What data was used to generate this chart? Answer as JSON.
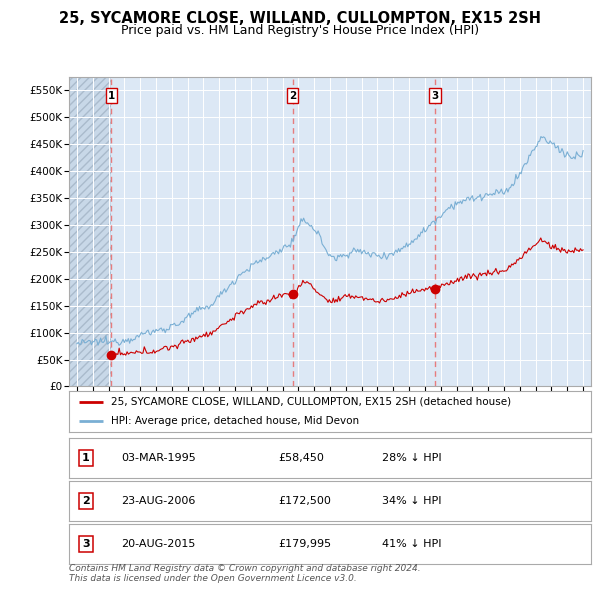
{
  "title": "25, SYCAMORE CLOSE, WILLAND, CULLOMPTON, EX15 2SH",
  "subtitle": "Price paid vs. HM Land Registry's House Price Index (HPI)",
  "ylim": [
    0,
    575000
  ],
  "yticks": [
    0,
    50000,
    100000,
    150000,
    200000,
    250000,
    300000,
    350000,
    400000,
    450000,
    500000,
    550000
  ],
  "ytick_labels": [
    "£0",
    "£50K",
    "£100K",
    "£150K",
    "£200K",
    "£250K",
    "£300K",
    "£350K",
    "£400K",
    "£450K",
    "£500K",
    "£550K"
  ],
  "xlim_start": 1992.5,
  "xlim_end": 2025.5,
  "xtick_years": [
    1993,
    1994,
    1995,
    1996,
    1997,
    1998,
    1999,
    2000,
    2001,
    2002,
    2003,
    2004,
    2005,
    2006,
    2007,
    2008,
    2009,
    2010,
    2011,
    2012,
    2013,
    2014,
    2015,
    2016,
    2017,
    2018,
    2019,
    2020,
    2021,
    2022,
    2023,
    2024,
    2025
  ],
  "sale_dates": [
    1995.17,
    2006.64,
    2015.64
  ],
  "sale_prices": [
    58450,
    172500,
    179995
  ],
  "sale_labels": [
    "1",
    "2",
    "3"
  ],
  "legend_house_label": "25, SYCAMORE CLOSE, WILLAND, CULLOMPTON, EX15 2SH (detached house)",
  "legend_hpi_label": "HPI: Average price, detached house, Mid Devon",
  "table_rows": [
    [
      "1",
      "03-MAR-1995",
      "£58,450",
      "28% ↓ HPI"
    ],
    [
      "2",
      "23-AUG-2006",
      "£172,500",
      "34% ↓ HPI"
    ],
    [
      "3",
      "20-AUG-2015",
      "£179,995",
      "41% ↓ HPI"
    ]
  ],
  "footnote": "Contains HM Land Registry data © Crown copyright and database right 2024.\nThis data is licensed under the Open Government Licence v3.0.",
  "house_color": "#cc0000",
  "hpi_color": "#7aafd4",
  "vline_color": "#e87070",
  "dot_color": "#cc0000",
  "bg_chart": "#dce8f5",
  "bg_hatch": "#c8d8e8",
  "grid_color": "#ffffff",
  "title_fontsize": 10.5,
  "subtitle_fontsize": 9
}
